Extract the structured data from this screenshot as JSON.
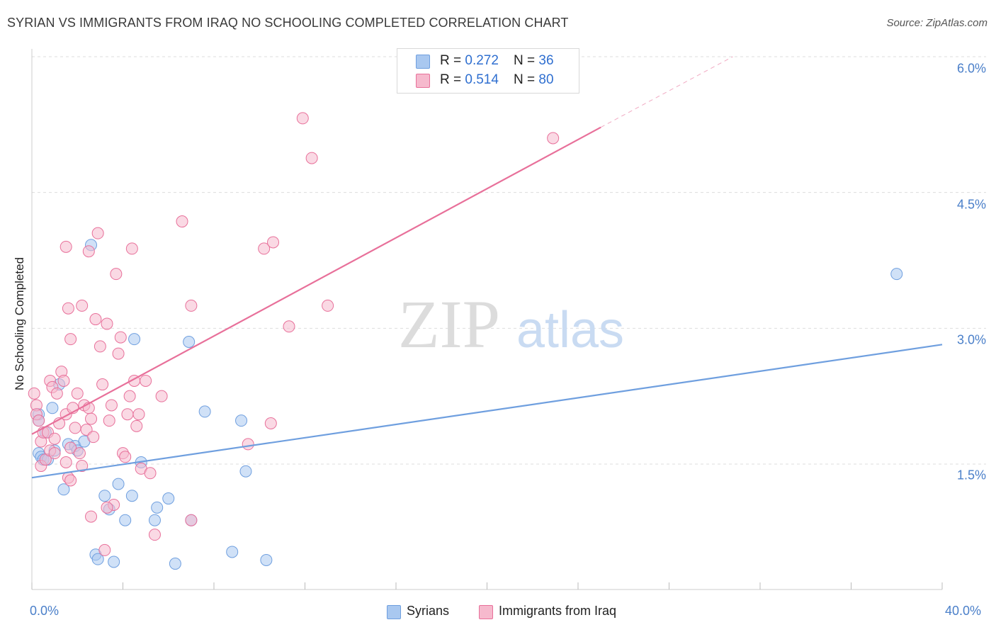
{
  "title": "SYRIAN VS IMMIGRANTS FROM IRAQ NO SCHOOLING COMPLETED CORRELATION CHART",
  "source": "Source: ZipAtlas.com",
  "watermark": {
    "zip": "ZIP",
    "atlas": "atlas"
  },
  "legend": {
    "rows": [
      {
        "r_label": "R = ",
        "r_value": "0.272",
        "n_label": "N = ",
        "n_value": "36",
        "color": "#a9c8f0"
      },
      {
        "r_label": "R = ",
        "r_value": "0.514",
        "n_label": "N = ",
        "n_value": "80",
        "color": "#f6b9cd"
      }
    ]
  },
  "bottom_legend": [
    "Syrians",
    "Immigrants from Iraq"
  ],
  "y_ticks": [
    "6.0%",
    "4.5%",
    "3.0%",
    "1.5%"
  ],
  "x_ticks": {
    "left": "0.0%",
    "right": "40.0%"
  },
  "chart_data": {
    "type": "scatter",
    "title": "SYRIAN VS IMMIGRANTS FROM IRAQ NO SCHOOLING COMPLETED CORRELATION CHART",
    "xlabel": "",
    "ylabel": "No Schooling Completed",
    "xlim": [
      0,
      40
    ],
    "ylim": [
      0,
      6.3
    ],
    "y_ticks": [
      1.5,
      3.0,
      4.5,
      6.0
    ],
    "grid": true,
    "legend_position": "top-center",
    "series": [
      {
        "name": "Syrians",
        "color": "#6f9fdf",
        "fill": "#a9c8f0",
        "trend": {
          "x": [
            0,
            40
          ],
          "y": [
            1.35,
            2.82
          ]
        },
        "points": [
          [
            0.3,
            2.05
          ],
          [
            0.3,
            1.98
          ],
          [
            0.3,
            1.62
          ],
          [
            0.4,
            1.58
          ],
          [
            0.5,
            1.55
          ],
          [
            0.6,
            1.85
          ],
          [
            0.7,
            1.55
          ],
          [
            0.9,
            2.12
          ],
          [
            1.0,
            1.65
          ],
          [
            1.2,
            2.38
          ],
          [
            1.4,
            1.22
          ],
          [
            1.6,
            1.72
          ],
          [
            1.9,
            1.7
          ],
          [
            2.0,
            1.65
          ],
          [
            2.3,
            1.75
          ],
          [
            2.6,
            3.92
          ],
          [
            2.8,
            0.5
          ],
          [
            2.9,
            0.45
          ],
          [
            3.2,
            1.15
          ],
          [
            3.4,
            1.0
          ],
          [
            3.6,
            0.42
          ],
          [
            3.8,
            1.28
          ],
          [
            4.1,
            0.88
          ],
          [
            4.4,
            1.15
          ],
          [
            4.5,
            2.88
          ],
          [
            4.8,
            1.52
          ],
          [
            5.4,
            0.88
          ],
          [
            5.5,
            1.02
          ],
          [
            6.0,
            1.12
          ],
          [
            6.3,
            0.4
          ],
          [
            6.9,
            2.85
          ],
          [
            7.0,
            0.88
          ],
          [
            7.6,
            2.08
          ],
          [
            8.8,
            0.53
          ],
          [
            9.2,
            1.98
          ],
          [
            9.4,
            1.42
          ],
          [
            10.3,
            0.44
          ],
          [
            38.0,
            3.6
          ]
        ]
      },
      {
        "name": "Immigrants from Iraq",
        "color": "#e8709a",
        "fill": "#f6b9cd",
        "trend": {
          "x": [
            0,
            25
          ],
          "y": [
            1.83,
            5.22
          ]
        },
        "trend_dashed": {
          "x": [
            25,
            30.8
          ],
          "y": [
            5.22,
            6.0
          ]
        },
        "points": [
          [
            0.1,
            2.28
          ],
          [
            0.2,
            2.15
          ],
          [
            0.2,
            2.05
          ],
          [
            0.3,
            1.98
          ],
          [
            0.4,
            1.75
          ],
          [
            0.4,
            1.48
          ],
          [
            0.5,
            1.85
          ],
          [
            0.6,
            1.55
          ],
          [
            0.7,
            1.85
          ],
          [
            0.8,
            2.42
          ],
          [
            0.8,
            1.65
          ],
          [
            0.9,
            2.35
          ],
          [
            1.0,
            1.78
          ],
          [
            1.0,
            1.62
          ],
          [
            1.1,
            2.28
          ],
          [
            1.2,
            1.95
          ],
          [
            1.3,
            2.52
          ],
          [
            1.4,
            2.42
          ],
          [
            1.5,
            2.05
          ],
          [
            1.5,
            1.52
          ],
          [
            1.6,
            1.35
          ],
          [
            1.7,
            1.68
          ],
          [
            1.7,
            1.32
          ],
          [
            1.8,
            2.12
          ],
          [
            1.9,
            1.9
          ],
          [
            2.0,
            2.28
          ],
          [
            2.1,
            1.62
          ],
          [
            2.2,
            1.48
          ],
          [
            2.3,
            2.15
          ],
          [
            2.4,
            1.88
          ],
          [
            2.5,
            2.12
          ],
          [
            2.6,
            2.0
          ],
          [
            2.6,
            0.92
          ],
          [
            2.7,
            1.8
          ],
          [
            2.8,
            3.1
          ],
          [
            2.9,
            4.05
          ],
          [
            3.0,
            2.8
          ],
          [
            3.1,
            2.38
          ],
          [
            3.2,
            0.55
          ],
          [
            3.3,
            3.05
          ],
          [
            3.4,
            1.98
          ],
          [
            3.5,
            2.15
          ],
          [
            3.6,
            1.05
          ],
          [
            3.7,
            3.6
          ],
          [
            3.8,
            2.72
          ],
          [
            3.9,
            2.9
          ],
          [
            4.0,
            1.62
          ],
          [
            4.1,
            1.58
          ],
          [
            4.2,
            2.05
          ],
          [
            4.3,
            2.25
          ],
          [
            4.4,
            3.88
          ],
          [
            4.5,
            2.42
          ],
          [
            4.6,
            1.92
          ],
          [
            4.7,
            2.05
          ],
          [
            4.8,
            1.45
          ],
          [
            5.0,
            2.42
          ],
          [
            5.2,
            1.4
          ],
          [
            5.4,
            0.72
          ],
          [
            5.7,
            2.25
          ],
          [
            1.5,
            3.9
          ],
          [
            1.6,
            3.22
          ],
          [
            1.7,
            2.88
          ],
          [
            2.2,
            3.25
          ],
          [
            2.5,
            3.85
          ],
          [
            3.3,
            1.02
          ],
          [
            6.6,
            4.18
          ],
          [
            7.0,
            3.25
          ],
          [
            7.0,
            0.88
          ],
          [
            9.5,
            1.72
          ],
          [
            10.2,
            3.88
          ],
          [
            10.5,
            1.95
          ],
          [
            10.6,
            3.95
          ],
          [
            11.3,
            3.02
          ],
          [
            11.9,
            5.32
          ],
          [
            12.3,
            4.88
          ],
          [
            13.0,
            3.25
          ],
          [
            22.9,
            5.1
          ]
        ]
      }
    ]
  }
}
